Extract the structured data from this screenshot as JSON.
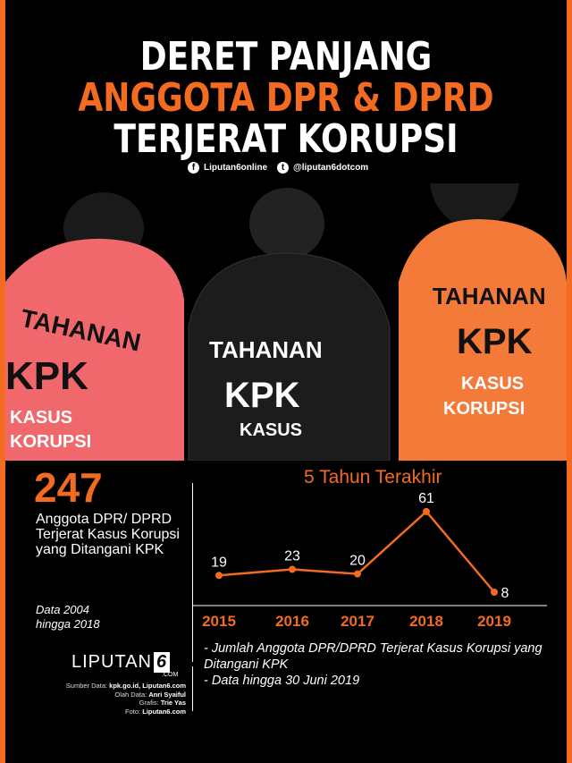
{
  "header": {
    "line1": "DERET PANJANG",
    "line2": "ANGGOTA DPR & DPRD",
    "line3": "TERJERAT KORUPSI"
  },
  "social": {
    "facebook": "Liputan6online",
    "twitter": "@liputan6dotcom",
    "facebook_icon": "facebook-icon",
    "twitter_icon": "twitter-icon"
  },
  "photo": {
    "jacket_text_1": "TAHANAN",
    "jacket_text_2": "KPK",
    "jacket_text_3": "KASUS",
    "jacket_text_4": "KORUPSI"
  },
  "summary": {
    "total": "247",
    "description": "Anggota DPR/ DPRD Terjerat Kasus Korupsi yang Ditangani KPK",
    "period": "Data 2004 hingga 2018"
  },
  "chart_data": {
    "type": "line",
    "title": "5 Tahun Terakhir",
    "categories": [
      "2015",
      "2016",
      "2017",
      "2018",
      "2019"
    ],
    "values": [
      19,
      23,
      20,
      61,
      8
    ],
    "color": "#f26b21",
    "grid": false
  },
  "footnotes": [
    "- Jumlah Anggota DPR/DPRD Terjerat Kasus Korupsi yang Ditangani KPK",
    "- Data hingga 30 Juni 2019"
  ],
  "brand": {
    "name": "LIPUTAN",
    "six": "6",
    "com": ".COM"
  },
  "credits": [
    {
      "label": "Sumber Data: ",
      "value": "kpk.go.id, Liputan6.com"
    },
    {
      "label": "Olah Data: ",
      "value": "Anri Syaiful"
    },
    {
      "label": "Grafis: ",
      "value": "Trie Yas"
    },
    {
      "label": "Foto: ",
      "value": "Liputan6.com"
    }
  ],
  "colors": {
    "accent": "#f26b21",
    "background": "#000000"
  }
}
